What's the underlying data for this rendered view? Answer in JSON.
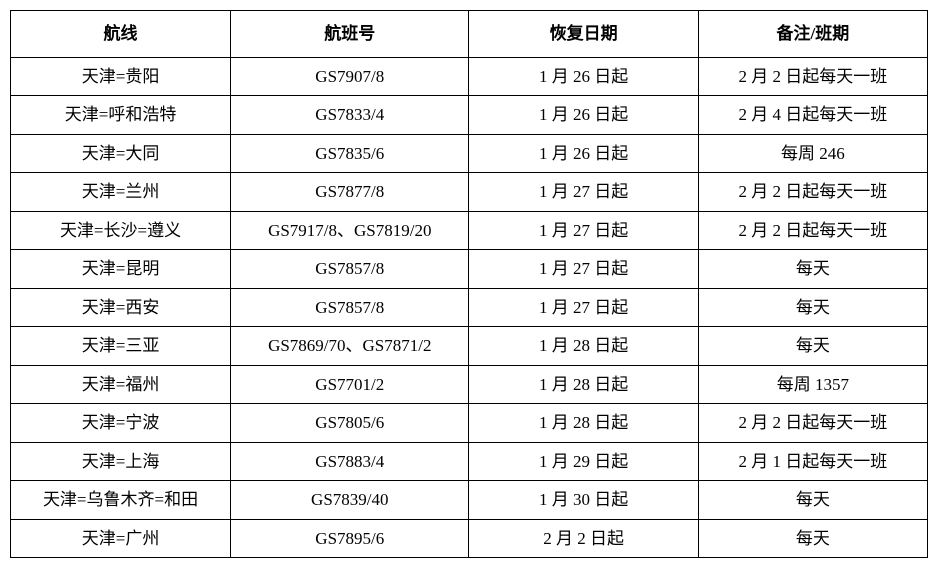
{
  "table": {
    "columns": [
      "航线",
      "航班号",
      "恢复日期",
      "备注/班期"
    ],
    "rows": [
      [
        "天津=贵阳",
        "GS7907/8",
        "1 月 26 日起",
        "2 月 2 日起每天一班"
      ],
      [
        "天津=呼和浩特",
        "GS7833/4",
        "1 月 26 日起",
        "2 月 4 日起每天一班"
      ],
      [
        "天津=大同",
        "GS7835/6",
        "1 月 26 日起",
        "每周 246"
      ],
      [
        "天津=兰州",
        "GS7877/8",
        "1 月 27 日起",
        "2 月 2 日起每天一班"
      ],
      [
        "天津=长沙=遵义",
        "GS7917/8、GS7819/20",
        "1 月 27 日起",
        "2 月 2 日起每天一班"
      ],
      [
        "天津=昆明",
        "GS7857/8",
        "1 月 27 日起",
        "每天"
      ],
      [
        "天津=西安",
        "GS7857/8",
        "1 月 27 日起",
        "每天"
      ],
      [
        "天津=三亚",
        "GS7869/70、GS7871/2",
        "1 月 28 日起",
        "每天"
      ],
      [
        "天津=福州",
        "GS7701/2",
        "1 月 28 日起",
        "每周 1357"
      ],
      [
        "天津=宁波",
        "GS7805/6",
        "1 月 28 日起",
        "2 月 2 日起每天一班"
      ],
      [
        "天津=上海",
        "GS7883/4",
        "1 月 29 日起",
        "2 月 1 日起每天一班"
      ],
      [
        "天津=乌鲁木齐=和田",
        "GS7839/40",
        "1 月 30 日起",
        "每天"
      ],
      [
        "天津=广州",
        "GS7895/6",
        "2 月 2 日起",
        "每天"
      ]
    ],
    "header_fontsize": 17,
    "cell_fontsize": 17,
    "border_color": "#000000",
    "background_color": "#ffffff",
    "text_color": "#000000"
  }
}
